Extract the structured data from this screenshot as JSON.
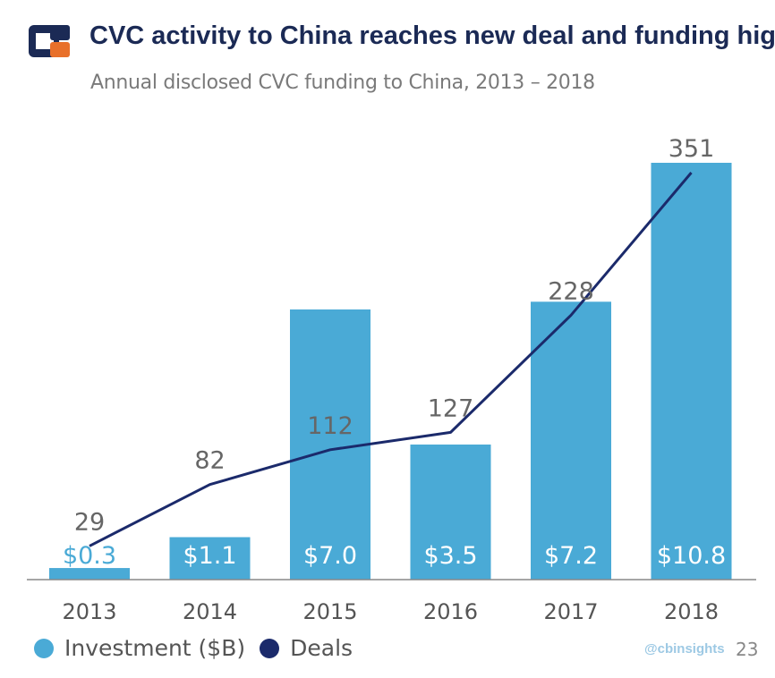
{
  "header": {
    "title": "CVC activity to China reaches new deal and funding high",
    "subtitle": "Annual disclosed CVC funding to China, 2013 – 2018",
    "logo_icon": "cb-insights-logo-icon"
  },
  "colors": {
    "bar": "#4aaad6",
    "line": "#1b2a6b",
    "logo_navy": "#1b2a55",
    "logo_orange": "#e8702a",
    "axis": "#888888"
  },
  "chart_data": {
    "type": "bar",
    "categories": [
      "2013",
      "2014",
      "2015",
      "2016",
      "2017",
      "2018"
    ],
    "series": [
      {
        "name": "Investment ($B)",
        "type": "bar",
        "values": [
          0.3,
          1.1,
          7.0,
          3.5,
          7.2,
          10.8
        ],
        "labels": [
          "$0.3",
          "$1.1",
          "$7.0",
          "$3.5",
          "$7.2",
          "$10.8"
        ]
      },
      {
        "name": "Deals",
        "type": "line",
        "values": [
          29,
          82,
          112,
          127,
          228,
          351
        ],
        "labels": [
          "29",
          "82",
          "112",
          "127",
          "228",
          "351"
        ]
      }
    ],
    "y_bar_range": [
      0,
      10.8
    ],
    "y_line_range": [
      0,
      351
    ],
    "grid": false,
    "legend_position": "bottom-left"
  },
  "legend": [
    {
      "label": "Investment ($B)",
      "color": "#4aaad6"
    },
    {
      "label": "Deals",
      "color": "#1b2a6b"
    }
  ],
  "footer": {
    "watermark": "@cbinsights",
    "page_number": "23"
  }
}
